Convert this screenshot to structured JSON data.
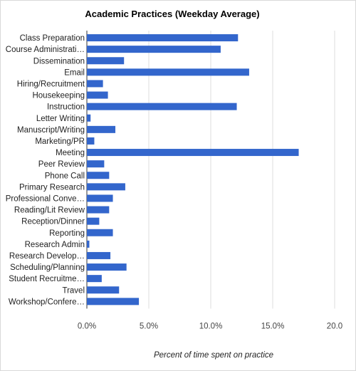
{
  "chart_data": {
    "type": "bar",
    "orientation": "horizontal",
    "title": "Academic Practices (Weekday Average)",
    "xlabel": "Percent of time spent on practice",
    "ylabel": "",
    "xlim": [
      0,
      20
    ],
    "x_ticks": [
      0,
      5,
      10,
      15,
      20
    ],
    "x_tick_labels": [
      "0.0%",
      "5.0%",
      "10.0%",
      "15.0%",
      "20.0"
    ],
    "grid": true,
    "legend": "none",
    "bar_color": "#3366cc",
    "categories": [
      "Class Preparation",
      "Course Administrati…",
      "Dissemination",
      "Email",
      "Hiring/Recruitment",
      "Housekeeping",
      "Instruction",
      "Letter Writing",
      "Manuscript/Writing",
      "Marketing/PR",
      "Meeting",
      "Peer Review",
      "Phone Call",
      "Primary Research",
      "Professional Conve…",
      "Reading/Lit Review",
      "Reception/Dinner",
      "Reporting",
      "Research Admin",
      "Research Develop…",
      "Scheduling/Planning",
      "Student Recruitme…",
      "Travel",
      "Workshop/Confere…"
    ],
    "values": [
      12.2,
      10.8,
      3.0,
      13.1,
      1.3,
      1.7,
      12.1,
      0.3,
      2.3,
      0.6,
      17.1,
      1.4,
      1.8,
      3.1,
      2.1,
      1.8,
      1.0,
      2.1,
      0.2,
      1.9,
      3.2,
      1.2,
      2.6,
      4.2
    ]
  }
}
